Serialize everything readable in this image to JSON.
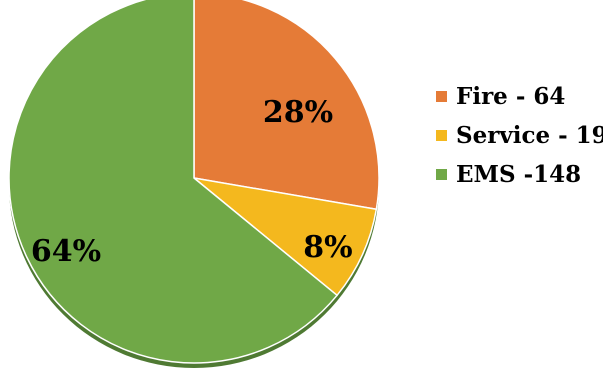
{
  "chart_data": {
    "type": "pie",
    "title": "",
    "start_angle_deg": 0,
    "direction": "clockwise",
    "legend_position": "right",
    "slices": [
      {
        "label": "Fire - 64",
        "value": 64,
        "percent_label": "28%",
        "color": "#E57B37"
      },
      {
        "label": "Service - 19",
        "value": 19,
        "percent_label": "8%",
        "color": "#F4B81E"
      },
      {
        "label": "EMS -148",
        "value": 148,
        "percent_label": "64%",
        "color": "#70A847"
      }
    ],
    "shadow_color": "#4F7A33"
  }
}
